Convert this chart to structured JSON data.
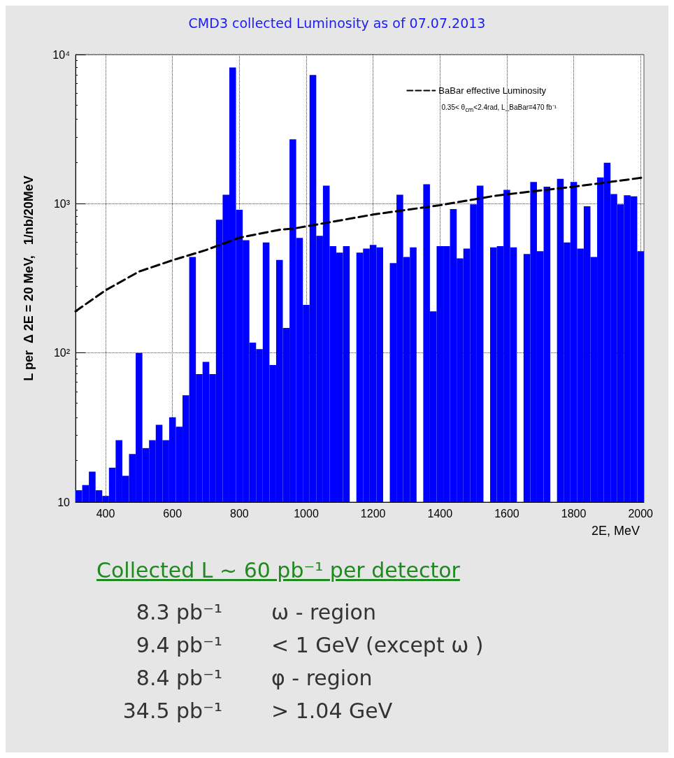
{
  "chart_data": {
    "type": "histogram",
    "title": "CMD3 collected Luminosity as of 07.07.2013",
    "xlabel": "2E, MeV",
    "ylabel": "L per  Δ 2E = 20 MeV,   1/nb/20MeV",
    "bins": [
      310,
      330,
      350,
      370,
      390,
      410,
      430,
      450,
      470,
      490,
      510,
      530,
      550,
      570,
      590,
      610,
      630,
      650,
      670,
      690,
      710,
      730,
      750,
      770,
      790,
      810,
      830,
      850,
      870,
      890,
      910,
      930,
      950,
      970,
      990,
      1010,
      1030,
      1050,
      1070,
      1090,
      1110,
      1130,
      1150,
      1170,
      1190,
      1210,
      1230,
      1250,
      1270,
      1290,
      1310,
      1330,
      1350,
      1370,
      1390,
      1410,
      1430,
      1450,
      1470,
      1490,
      1510,
      1530,
      1550,
      1570,
      1590,
      1610,
      1630,
      1650,
      1670,
      1690,
      1710,
      1730,
      1750,
      1770,
      1790,
      1810,
      1830,
      1850,
      1870,
      1890,
      1910,
      1930,
      1950,
      1970,
      1990,
      2010
    ],
    "series": [
      {
        "color": "#0000ff",
        "values": [
          12,
          13,
          16,
          12,
          11,
          17,
          26,
          15,
          21,
          100,
          23,
          26,
          33,
          26,
          37,
          32,
          52,
          440,
          72,
          87,
          72,
          780,
          1150,
          8200,
          910,
          570,
          117,
          106,
          550,
          83,
          420,
          147,
          2700,
          590,
          210,
          7300,
          610,
          1320,
          520,
          470,
          520,
          null,
          470,
          500,
          530,
          510,
          null,
          400,
          1150,
          440,
          510,
          null,
          1350,
          190,
          520,
          520,
          920,
          430,
          500,
          990,
          1320,
          null,
          510,
          520,
          1240,
          510,
          null,
          460,
          1400,
          480,
          1300,
          null,
          1470,
          550,
          1400,
          500,
          960,
          440,
          1500,
          1880,
          1160,
          990,
          1140,
          1120,
          480
        ]
      },
      {
        "type": "line",
        "name": "BaBar effective Luminosity",
        "color": "#000000",
        "line_style": "dashed",
        "marker": "none",
        "x": [
          310,
          400,
          500,
          600,
          700,
          800,
          925,
          960,
          1200,
          1400,
          1560,
          1600,
          1800,
          2010
        ],
        "values": [
          190,
          263,
          351,
          418,
          489,
          592,
          672,
          680,
          846,
          977,
          1126,
          1156,
          1300,
          1500
        ]
      }
    ],
    "xlim": [
      310,
      2010
    ],
    "xticks": [
      400,
      600,
      800,
      1000,
      1200,
      1400,
      1600,
      1800,
      2000
    ],
    "ylim": [
      10,
      10000
    ],
    "yticks": [
      10,
      {
        "value": 100,
        "label": "10²"
      },
      {
        "value": 1000,
        "label": "10³"
      },
      {
        "value": 10000,
        "label": "10⁴"
      }
    ],
    "log": "y",
    "grid": true,
    "legend": "top right",
    "annotations": [
      "0.35< θ$_{cm}$<2.4rad, L_BaBar=470 fb⁻¹",
      "Collected L ~ 60 pb⁻¹ per detector",
      "8.3 pb⁻¹",
      "ω - region",
      "9.4 pb⁻¹",
      "< 1 GeV (except ω )",
      "8.4 pb⁻¹",
      "φ - region",
      "34.5 pb⁻¹",
      "> 1.04 GeV"
    ]
  }
}
